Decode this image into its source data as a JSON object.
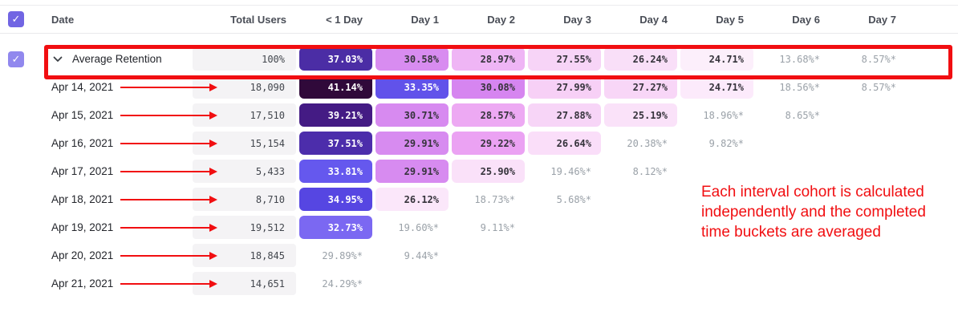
{
  "header": {
    "columns": [
      "Date",
      "Total Users",
      "< 1 Day",
      "Day 1",
      "Day 2",
      "Day 3",
      "Day 4",
      "Day 5",
      "Day 6",
      "Day 7"
    ]
  },
  "rows": [
    {
      "is_average": true,
      "label": "Average Retention",
      "total": "100%",
      "cells": [
        {
          "value": "37.03%",
          "bg": "#4b2da5",
          "fg": "#ffffff"
        },
        {
          "value": "30.58%",
          "bg": "#d88cf0",
          "fg": "#35333b"
        },
        {
          "value": "28.97%",
          "bg": "#efb5f5",
          "fg": "#35333b"
        },
        {
          "value": "27.55%",
          "bg": "#f7d4f7",
          "fg": "#35333b"
        },
        {
          "value": "26.24%",
          "bg": "#f9dff8",
          "fg": "#35333b"
        },
        {
          "value": "24.71%",
          "bg": "#fceffb",
          "fg": "#35333b"
        },
        {
          "value": "13.68%*",
          "muted": true
        },
        {
          "value": "8.57%*",
          "muted": true
        }
      ]
    },
    {
      "label": "Apr 14, 2021",
      "total": "18,090",
      "cells": [
        {
          "value": "41.14%",
          "bg": "#30093a",
          "fg": "#ffffff"
        },
        {
          "value": "33.35%",
          "bg": "#6152ea",
          "fg": "#ffffff"
        },
        {
          "value": "30.08%",
          "bg": "#d685f0",
          "fg": "#35333b"
        },
        {
          "value": "27.99%",
          "bg": "#f7d0f6",
          "fg": "#35333b"
        },
        {
          "value": "27.27%",
          "bg": "#f8d6f7",
          "fg": "#35333b"
        },
        {
          "value": "24.71%",
          "bg": "#fceafb",
          "fg": "#35333b"
        },
        {
          "value": "18.56%*",
          "muted": true
        },
        {
          "value": "8.57%*",
          "muted": true
        }
      ]
    },
    {
      "label": "Apr 15, 2021",
      "total": "17,510",
      "cells": [
        {
          "value": "39.21%",
          "bg": "#441b84",
          "fg": "#ffffff"
        },
        {
          "value": "30.71%",
          "bg": "#d78af0",
          "fg": "#35333b"
        },
        {
          "value": "28.57%",
          "bg": "#eda9f3",
          "fg": "#35333b"
        },
        {
          "value": "27.88%",
          "bg": "#f7d5f7",
          "fg": "#35333b"
        },
        {
          "value": "25.19%",
          "bg": "#fae2f9",
          "fg": "#35333b"
        },
        {
          "value": "18.96%*",
          "muted": true
        },
        {
          "value": "8.65%*",
          "muted": true
        }
      ]
    },
    {
      "label": "Apr 16, 2021",
      "total": "15,154",
      "cells": [
        {
          "value": "37.51%",
          "bg": "#4c2dab",
          "fg": "#ffffff"
        },
        {
          "value": "29.91%",
          "bg": "#d78bf0",
          "fg": "#35333b"
        },
        {
          "value": "29.22%",
          "bg": "#eba2f3",
          "fg": "#35333b"
        },
        {
          "value": "26.64%",
          "bg": "#fadef9",
          "fg": "#35333b"
        },
        {
          "value": "20.38%*",
          "muted": true
        },
        {
          "value": "9.82%*",
          "muted": true
        }
      ]
    },
    {
      "label": "Apr 17, 2021",
      "total": "5,433",
      "cells": [
        {
          "value": "33.81%",
          "bg": "#6558ee",
          "fg": "#ffffff"
        },
        {
          "value": "29.91%",
          "bg": "#d78bf0",
          "fg": "#35333b"
        },
        {
          "value": "25.90%",
          "bg": "#fae1f9",
          "fg": "#35333b"
        },
        {
          "value": "19.46%*",
          "muted": true
        },
        {
          "value": "8.12%*",
          "muted": true
        }
      ]
    },
    {
      "label": "Apr 18, 2021",
      "total": "8,710",
      "cells": [
        {
          "value": "34.95%",
          "bg": "#5646e2",
          "fg": "#ffffff"
        },
        {
          "value": "26.12%",
          "bg": "#fbe7fa",
          "fg": "#35333b"
        },
        {
          "value": "18.73%*",
          "muted": true
        },
        {
          "value": "5.68%*",
          "muted": true
        }
      ]
    },
    {
      "label": "Apr 19, 2021",
      "total": "19,512",
      "cells": [
        {
          "value": "32.73%",
          "bg": "#7b68f2",
          "fg": "#ffffff"
        },
        {
          "value": "19.60%*",
          "muted": true
        },
        {
          "value": "9.11%*",
          "muted": true
        }
      ]
    },
    {
      "label": "Apr 20, 2021",
      "total": "18,845",
      "cells": [
        {
          "value": "29.89%*",
          "muted": true
        },
        {
          "value": "9.44%*",
          "muted": true
        }
      ]
    },
    {
      "label": "Apr 21, 2021",
      "total": "14,651",
      "cells": [
        {
          "value": "24.29%*",
          "muted": true
        }
      ]
    }
  ],
  "annotation": {
    "text": "Each interval cohort is calculated independently and the completed time buckets are averaged",
    "color": "#f10e11"
  },
  "icons": {
    "checkbox_check": "✓"
  },
  "colors": {
    "checkbox": "#7165e3",
    "checkbox_average": "#9188ee",
    "muted_text": "#9aa1a8",
    "cell_bg_neutral": "#f4f3f5"
  }
}
